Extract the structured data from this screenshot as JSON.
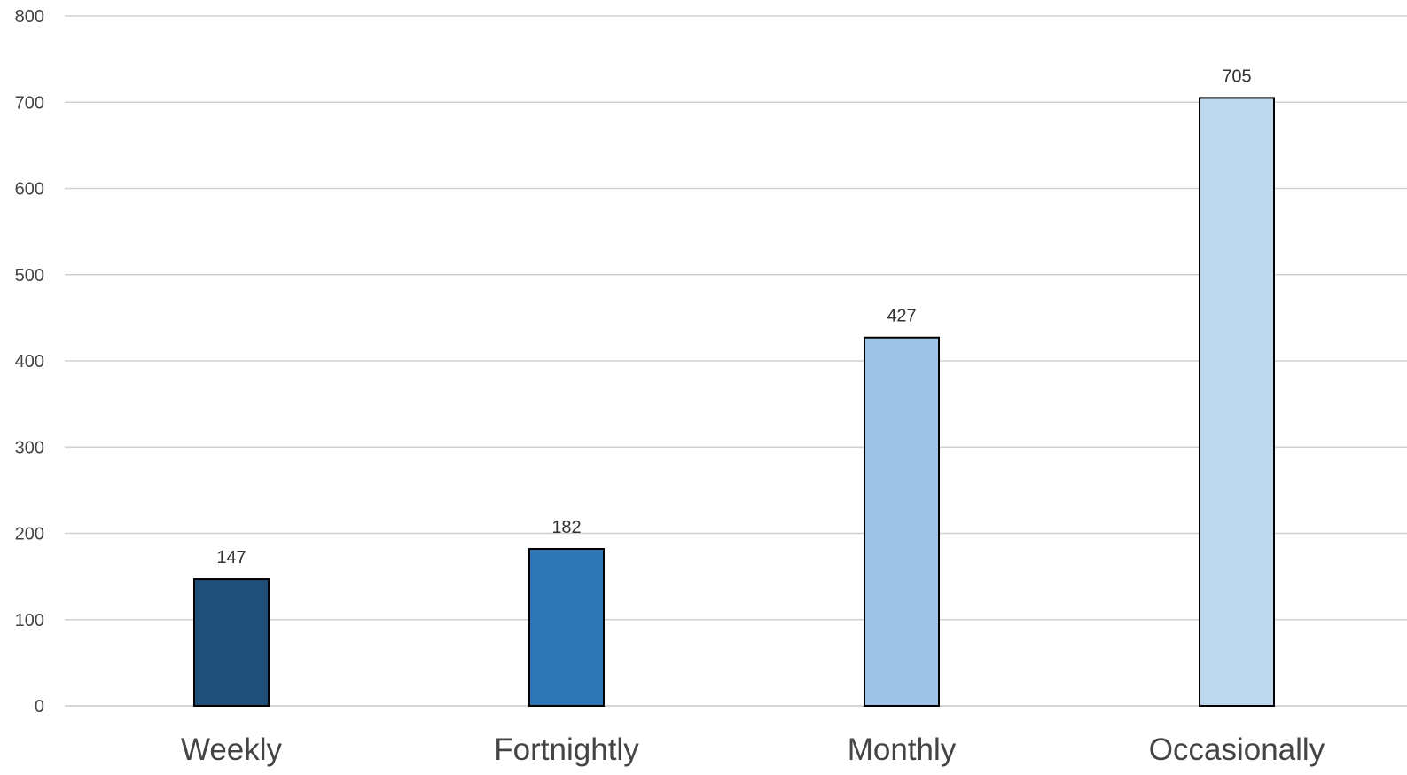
{
  "chart_data": {
    "type": "bar",
    "categories": [
      "Weekly",
      "Fortnightly",
      "Monthly",
      "Occasionally"
    ],
    "values": [
      147,
      182,
      427,
      705
    ],
    "data_labels": [
      "147",
      "182",
      "427",
      "705"
    ],
    "bar_colors": [
      "#1F4E79",
      "#2E75B6",
      "#9DC3E6",
      "#BDD7EE"
    ],
    "ylim": [
      0,
      800
    ],
    "yticks": [
      0,
      100,
      200,
      300,
      400,
      500,
      600,
      700,
      800
    ],
    "title": "",
    "xlabel": "",
    "ylabel": "",
    "grid": true,
    "legend": "none"
  }
}
